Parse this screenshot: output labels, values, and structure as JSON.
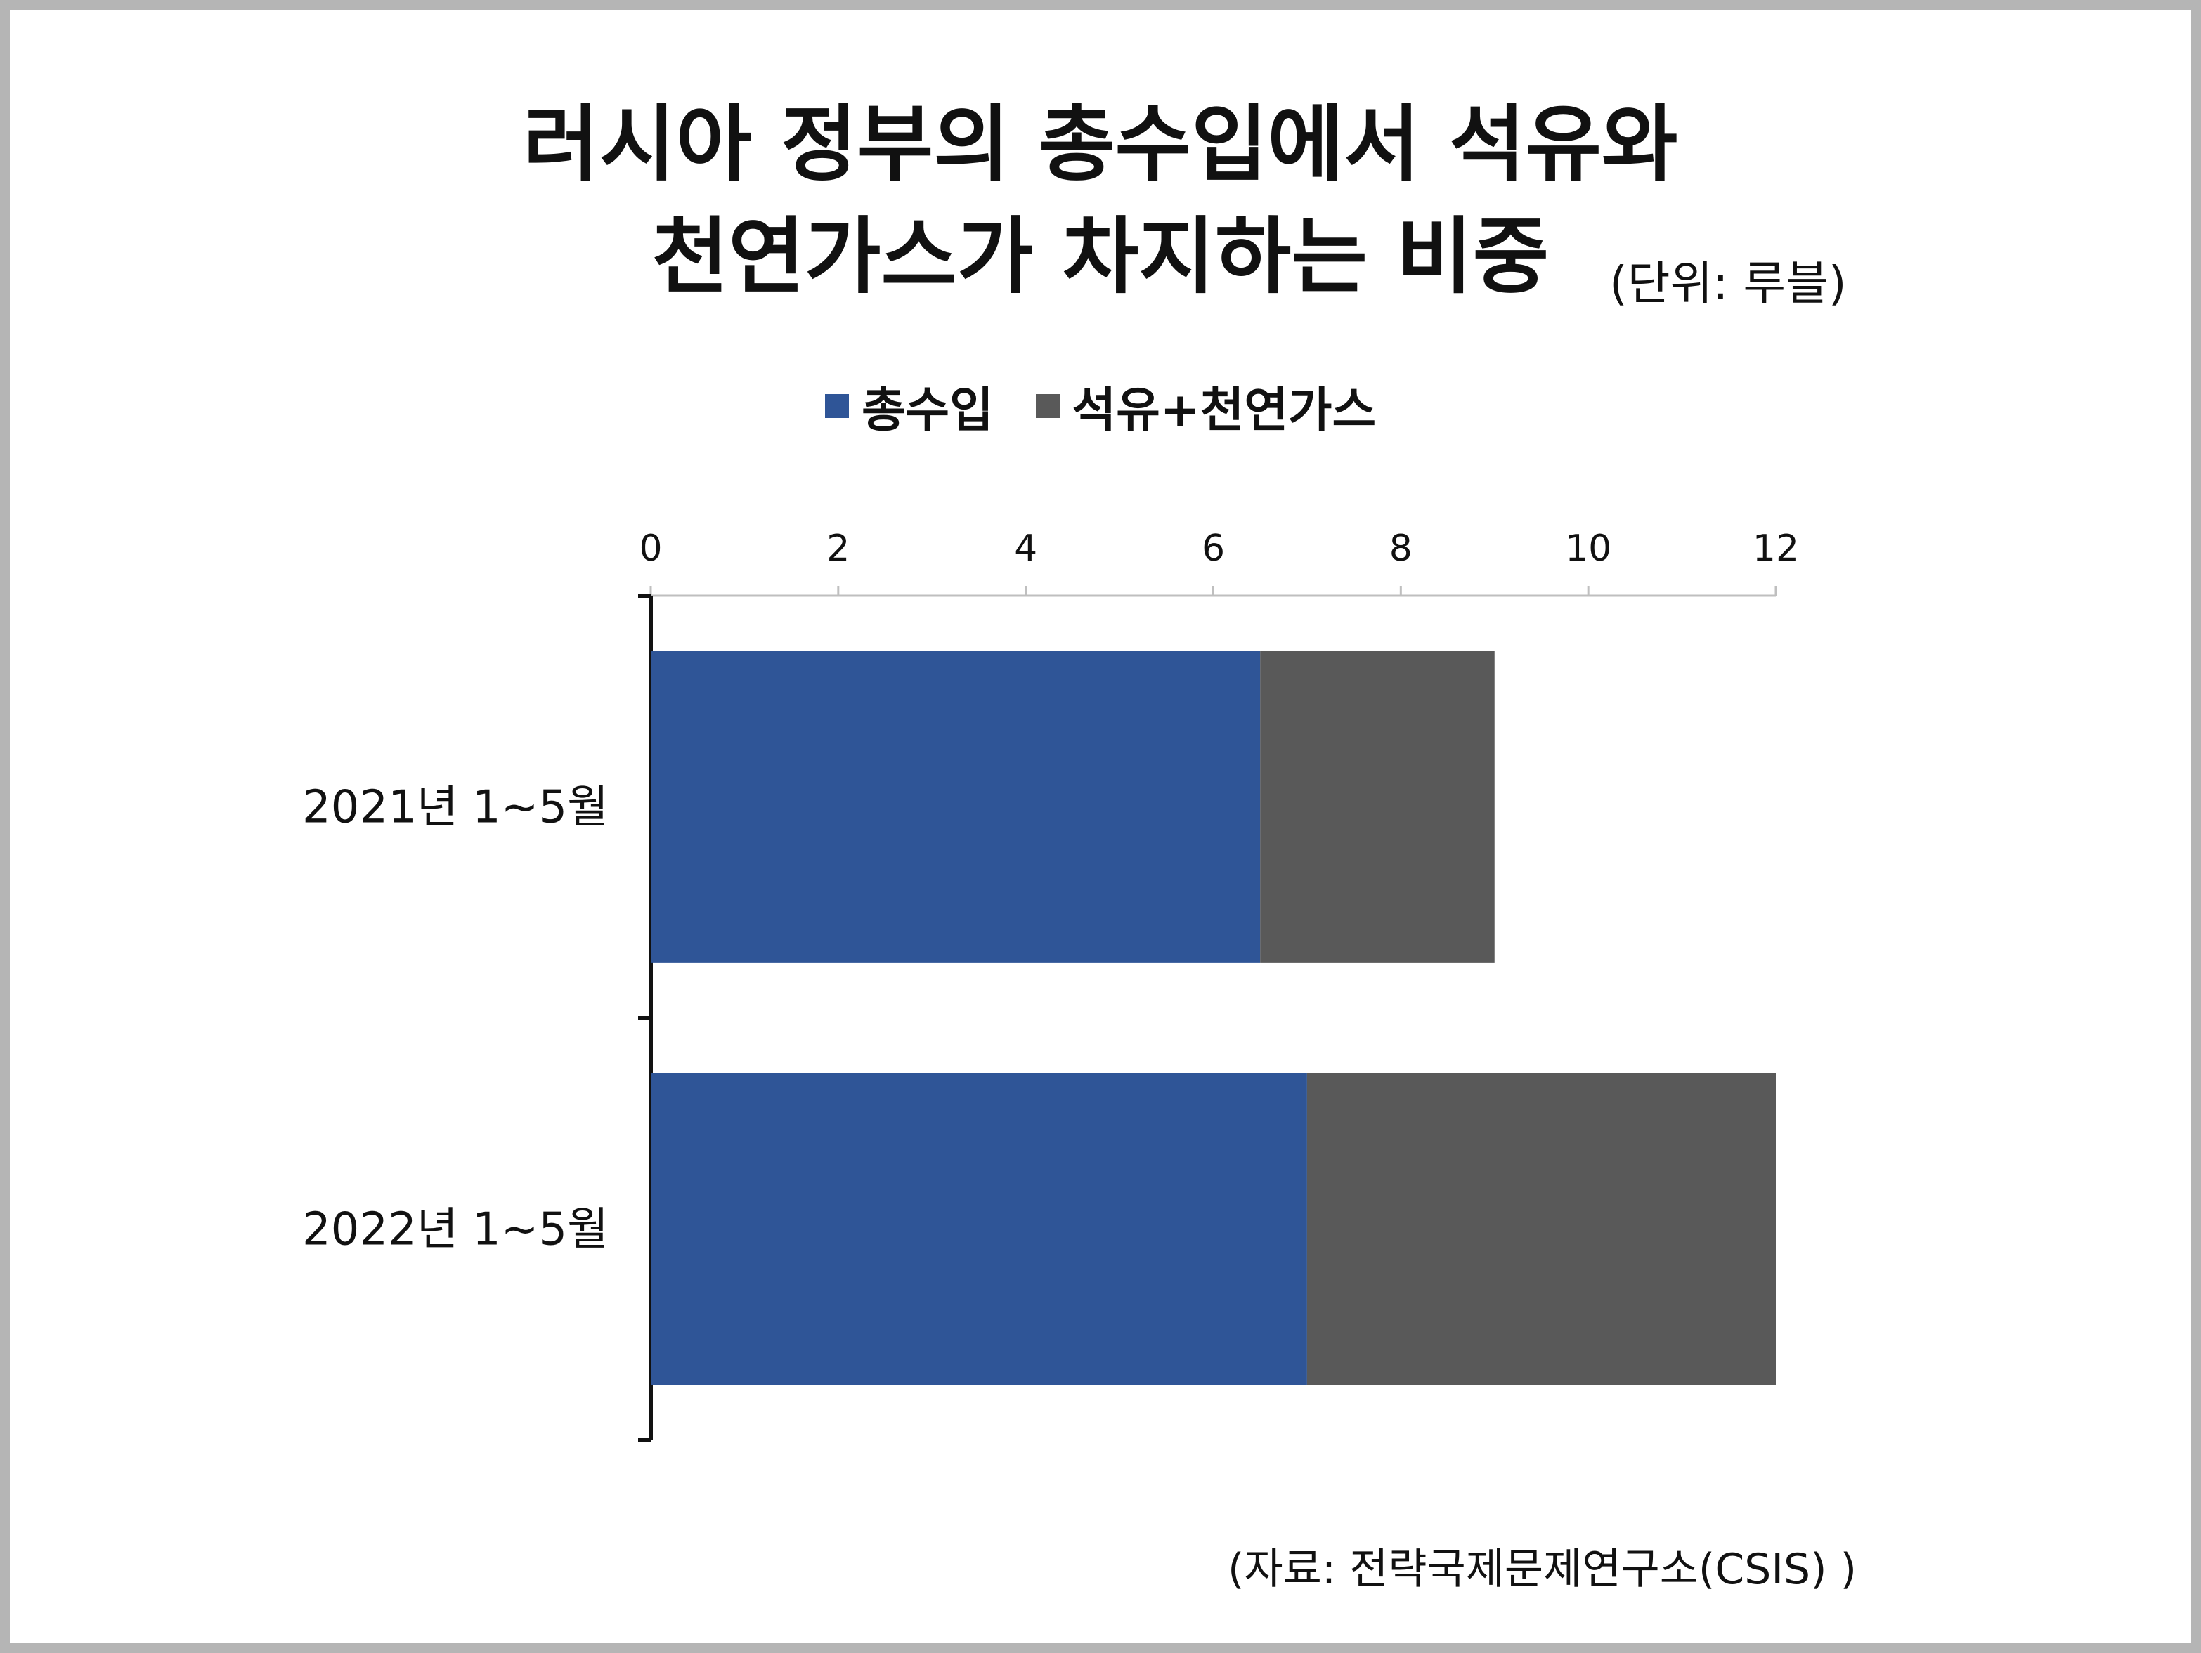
{
  "title_line1": "러시아 정부의 총수입에서 석유와",
  "title_line2": "천연가스가 차지하는 비중",
  "unit": "(단위: 루블)",
  "source": "(자료: 전략국제문제연구소(CSIS) )",
  "colors": {
    "total": "#2f5597",
    "oil_gas": "#595959",
    "border": "#b5b5b5"
  },
  "chart_data": {
    "type": "bar",
    "orientation": "horizontal",
    "stacked": true,
    "categories": [
      "2021년 1~5월",
      "2022년 1~5월"
    ],
    "series": [
      {
        "name": "총수입",
        "values": [
          6.5,
          7.0
        ]
      },
      {
        "name": "석유+천연가스",
        "values": [
          2.5,
          5.0
        ]
      }
    ],
    "xlim": [
      0,
      12
    ],
    "xticks": [
      0,
      2,
      4,
      6,
      8,
      10,
      12
    ],
    "x_axis_position": "top",
    "legend_position": "top",
    "grid": false
  }
}
